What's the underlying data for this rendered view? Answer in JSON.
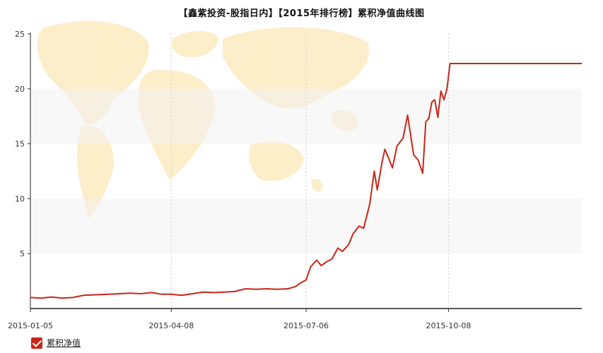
{
  "chart_data": {
    "type": "line",
    "title": "【鑫紫投资-股指日内】【2015年排行榜】累积净值曲线图",
    "xlabel": "",
    "ylabel": "",
    "ylim": [
      0,
      25
    ],
    "yticks": [
      5,
      10,
      15,
      20,
      25
    ],
    "grid": "vertical dashed at x ticks; alternating horizontal bands",
    "legend_position": "bottom-left",
    "x_ticks": [
      "2015-01-05",
      "2015-04-08",
      "2015-07-06",
      "2015-10-08"
    ],
    "x_range": [
      "2015-01-05",
      "2016-01-04"
    ],
    "series": [
      {
        "name": "累积净值",
        "color": "#c8261a",
        "points": [
          [
            "2015-01-05",
            1.0
          ],
          [
            "2015-01-12",
            0.95
          ],
          [
            "2015-01-19",
            1.05
          ],
          [
            "2015-01-26",
            0.95
          ],
          [
            "2015-02-02",
            1.0
          ],
          [
            "2015-02-09",
            1.2
          ],
          [
            "2015-02-16",
            1.25
          ],
          [
            "2015-02-26",
            1.3
          ],
          [
            "2015-03-05",
            1.35
          ],
          [
            "2015-03-12",
            1.4
          ],
          [
            "2015-03-19",
            1.35
          ],
          [
            "2015-03-26",
            1.45
          ],
          [
            "2015-04-02",
            1.3
          ],
          [
            "2015-04-08",
            1.3
          ],
          [
            "2015-04-15",
            1.2
          ],
          [
            "2015-04-22",
            1.35
          ],
          [
            "2015-04-29",
            1.5
          ],
          [
            "2015-05-06",
            1.45
          ],
          [
            "2015-05-13",
            1.5
          ],
          [
            "2015-05-20",
            1.55
          ],
          [
            "2015-05-27",
            1.8
          ],
          [
            "2015-06-03",
            1.75
          ],
          [
            "2015-06-10",
            1.8
          ],
          [
            "2015-06-17",
            1.75
          ],
          [
            "2015-06-24",
            1.8
          ],
          [
            "2015-06-29",
            2.0
          ],
          [
            "2015-07-02",
            2.3
          ],
          [
            "2015-07-06",
            2.6
          ],
          [
            "2015-07-09",
            3.8
          ],
          [
            "2015-07-13",
            4.4
          ],
          [
            "2015-07-16",
            3.9
          ],
          [
            "2015-07-20",
            4.3
          ],
          [
            "2015-07-23",
            4.5
          ],
          [
            "2015-07-27",
            5.5
          ],
          [
            "2015-07-30",
            5.2
          ],
          [
            "2015-08-03",
            5.8
          ],
          [
            "2015-08-06",
            6.8
          ],
          [
            "2015-08-10",
            7.5
          ],
          [
            "2015-08-13",
            7.3
          ],
          [
            "2015-08-17",
            9.5
          ],
          [
            "2015-08-20",
            12.5
          ],
          [
            "2015-08-22",
            10.8
          ],
          [
            "2015-08-25",
            13.2
          ],
          [
            "2015-08-27",
            14.5
          ],
          [
            "2015-08-30",
            13.5
          ],
          [
            "2015-09-01",
            12.8
          ],
          [
            "2015-09-04",
            14.8
          ],
          [
            "2015-09-08",
            15.5
          ],
          [
            "2015-09-11",
            17.6
          ],
          [
            "2015-09-15",
            14.0
          ],
          [
            "2015-09-18",
            13.5
          ],
          [
            "2015-09-21",
            12.3
          ],
          [
            "2015-09-23",
            17.0
          ],
          [
            "2015-09-25",
            17.3
          ],
          [
            "2015-09-27",
            18.8
          ],
          [
            "2015-09-29",
            19.0
          ],
          [
            "2015-10-01",
            17.4
          ],
          [
            "2015-10-03",
            19.8
          ],
          [
            "2015-10-05",
            19.0
          ],
          [
            "2015-10-07",
            20.0
          ],
          [
            "2015-10-09",
            22.3
          ],
          [
            "2015-10-20",
            22.3
          ],
          [
            "2015-11-01",
            22.3
          ],
          [
            "2015-11-15",
            22.3
          ],
          [
            "2015-12-01",
            22.3
          ],
          [
            "2015-12-15",
            22.3
          ],
          [
            "2016-01-04",
            22.3
          ]
        ]
      }
    ]
  }
}
